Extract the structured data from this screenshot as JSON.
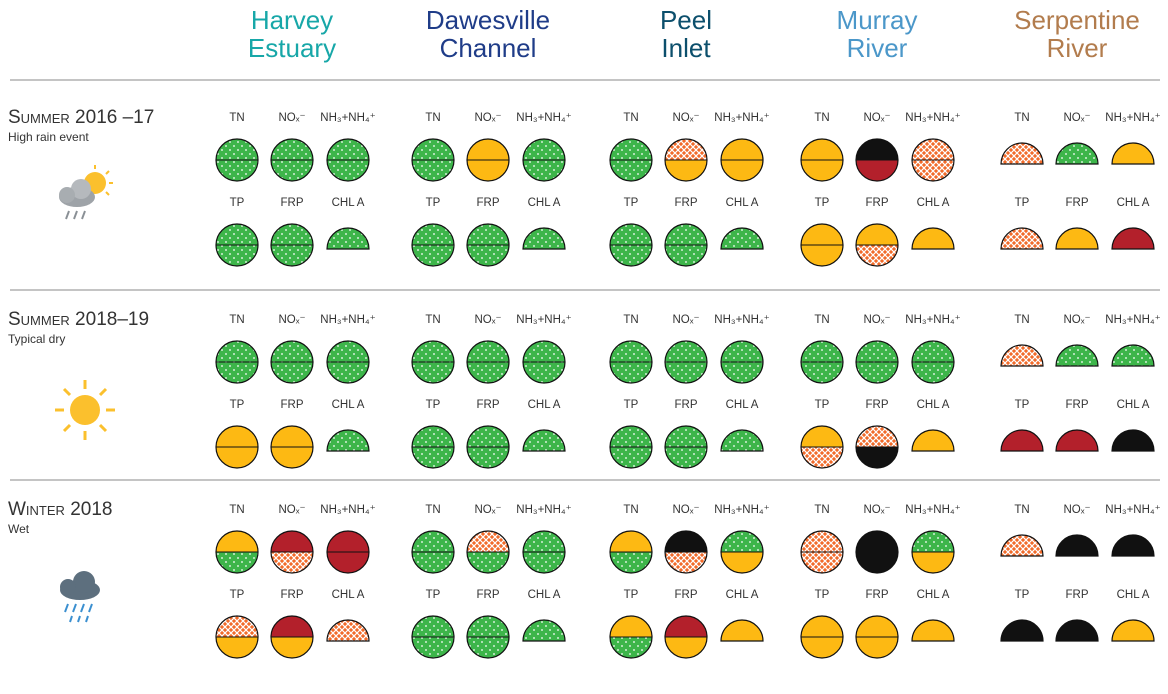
{
  "sites": [
    {
      "name": [
        "Harvey",
        "Estuary"
      ],
      "color": "#17a7a8"
    },
    {
      "name": [
        "Dawesville",
        "Channel"
      ],
      "color": "#1f3c88"
    },
    {
      "name": [
        "Peel",
        "Inlet"
      ],
      "color": "#0c4f6c"
    },
    {
      "name": [
        "Murray",
        "River"
      ],
      "color": "#4b97c9"
    },
    {
      "name": [
        "Serpentine",
        "River"
      ],
      "color": "#b27c4d"
    }
  ],
  "indicators": [
    "TN",
    "NOₓ⁻",
    "NH₃+NH₄⁺",
    "TP",
    "FRP",
    "CHL A"
  ],
  "seasons": [
    {
      "title": "Summer 2016 –17",
      "subtitle": "High rain event",
      "cells": [
        [
          [
            "#3db54a",
            "#3db54a"
          ],
          [
            "#3db54a",
            "#3db54a"
          ],
          [
            "#3db54a",
            "#3db54a"
          ],
          [
            "#3db54a",
            "#3db54a"
          ],
          [
            "#3db54a",
            "#3db54a"
          ],
          [
            "#3db54a"
          ]
        ],
        [
          [
            "#3db54a",
            "#3db54a"
          ],
          [
            "#fdb913",
            "#fdb913"
          ],
          [
            "#3db54a",
            "#3db54a"
          ],
          [
            "#3db54a",
            "#3db54a"
          ],
          [
            "#3db54a",
            "#3db54a"
          ],
          [
            "#3db54a"
          ]
        ],
        [
          [
            "#3db54a",
            "#3db54a"
          ],
          [
            "#f26b2a",
            "#fdb913"
          ],
          [
            "#fdb913",
            "#fdb913"
          ],
          [
            "#3db54a",
            "#3db54a"
          ],
          [
            "#3db54a",
            "#3db54a"
          ],
          [
            "#3db54a"
          ]
        ],
        [
          [
            "#fdb913",
            "#fdb913"
          ],
          [
            "#111111",
            "#b3202b"
          ],
          [
            "#f26b2a",
            "#f26b2a"
          ],
          [
            "#fdb913",
            "#fdb913"
          ],
          [
            "#fdb913",
            "#f26b2a"
          ],
          [
            "#fdb913"
          ]
        ],
        [
          [
            "#f26b2a"
          ],
          [
            "#3db54a"
          ],
          [
            "#fdb913"
          ],
          [
            "#f26b2a"
          ],
          [
            "#fdb913"
          ],
          [
            "#b3202b"
          ]
        ]
      ]
    },
    {
      "title": "Summer 2018–19",
      "subtitle": "Typical dry",
      "cells": [
        [
          [
            "#3db54a",
            "#3db54a"
          ],
          [
            "#3db54a",
            "#3db54a"
          ],
          [
            "#3db54a",
            "#3db54a"
          ],
          [
            "#fdb913",
            "#fdb913"
          ],
          [
            "#fdb913",
            "#fdb913"
          ],
          [
            "#3db54a"
          ]
        ],
        [
          [
            "#3db54a",
            "#3db54a"
          ],
          [
            "#3db54a",
            "#3db54a"
          ],
          [
            "#3db54a",
            "#3db54a"
          ],
          [
            "#3db54a",
            "#3db54a"
          ],
          [
            "#3db54a",
            "#3db54a"
          ],
          [
            "#3db54a"
          ]
        ],
        [
          [
            "#3db54a",
            "#3db54a"
          ],
          [
            "#3db54a",
            "#3db54a"
          ],
          [
            "#3db54a",
            "#3db54a"
          ],
          [
            "#3db54a",
            "#3db54a"
          ],
          [
            "#3db54a",
            "#3db54a"
          ],
          [
            "#3db54a"
          ]
        ],
        [
          [
            "#3db54a",
            "#3db54a"
          ],
          [
            "#3db54a",
            "#3db54a"
          ],
          [
            "#3db54a",
            "#3db54a"
          ],
          [
            "#fdb913",
            "#f26b2a"
          ],
          [
            "#f26b2a",
            "#111111"
          ],
          [
            "#fdb913"
          ]
        ],
        [
          [
            "#f26b2a"
          ],
          [
            "#3db54a"
          ],
          [
            "#3db54a"
          ],
          [
            "#b3202b"
          ],
          [
            "#b3202b"
          ],
          [
            "#111111"
          ]
        ]
      ]
    },
    {
      "title": "Winter 2018",
      "subtitle": "Wet",
      "cells": [
        [
          [
            "#fdb913",
            "#3db54a"
          ],
          [
            "#b3202b",
            "#f26b2a"
          ],
          [
            "#b3202b",
            "#b3202b"
          ],
          [
            "#f26b2a",
            "#fdb913"
          ],
          [
            "#b3202b",
            "#fdb913"
          ],
          [
            "#f26b2a"
          ]
        ],
        [
          [
            "#3db54a",
            "#3db54a"
          ],
          [
            "#f26b2a",
            "#3db54a"
          ],
          [
            "#3db54a",
            "#3db54a"
          ],
          [
            "#3db54a",
            "#3db54a"
          ],
          [
            "#3db54a",
            "#3db54a"
          ],
          [
            "#3db54a"
          ]
        ],
        [
          [
            "#fdb913",
            "#3db54a"
          ],
          [
            "#111111",
            "#f26b2a"
          ],
          [
            "#3db54a",
            "#fdb913"
          ],
          [
            "#fdb913",
            "#3db54a"
          ],
          [
            "#b3202b",
            "#fdb913"
          ],
          [
            "#fdb913"
          ]
        ],
        [
          [
            "#f26b2a",
            "#f26b2a"
          ],
          [
            "#111111",
            "#111111"
          ],
          [
            "#3db54a",
            "#fdb913"
          ],
          [
            "#fdb913",
            "#fdb913"
          ],
          [
            "#fdb913",
            "#fdb913"
          ],
          [
            "#fdb913"
          ]
        ],
        [
          [
            "#f26b2a"
          ],
          [
            "#111111"
          ],
          [
            "#111111"
          ],
          [
            "#111111"
          ],
          [
            "#111111"
          ],
          [
            "#fdb913"
          ]
        ]
      ]
    }
  ]
}
